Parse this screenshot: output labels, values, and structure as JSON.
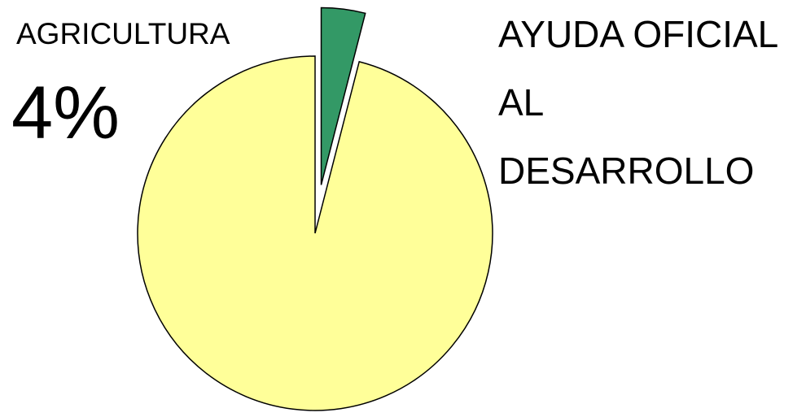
{
  "chart_data": {
    "type": "pie",
    "title": "AYUDA OFICIAL AL DESARROLLO",
    "categories": [
      "AGRICULTURA",
      null
    ],
    "values": [
      4,
      96
    ],
    "value_labels": [
      "4%",
      null
    ],
    "colors": [
      "#339966",
      "#ffff99"
    ],
    "explode": [
      true,
      false
    ]
  }
}
